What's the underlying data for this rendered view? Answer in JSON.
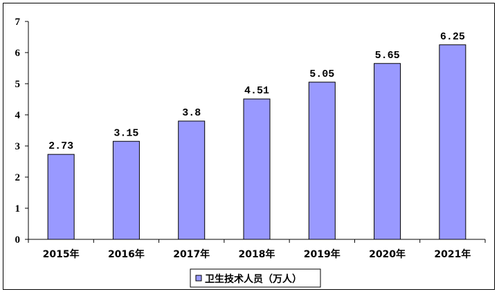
{
  "chart_data": {
    "type": "bar",
    "categories": [
      "2015年",
      "2016年",
      "2017年",
      "2018年",
      "2019年",
      "2020年",
      "2021年"
    ],
    "series": [
      {
        "name": "卫生技术人员（万人）",
        "values": [
          2.73,
          3.15,
          3.8,
          4.51,
          5.05,
          5.65,
          6.25
        ],
        "labels": [
          "2.73",
          "3.15",
          "3.8",
          "4.51",
          "5.05",
          "5.65",
          "6.25"
        ],
        "color": "#9999ff"
      }
    ],
    "ylim": [
      0,
      7
    ],
    "yticks": [
      "0",
      "1",
      "2",
      "3",
      "4",
      "5",
      "6",
      "7"
    ],
    "grid": false,
    "legend_position": "bottom-center",
    "title": "",
    "xlabel": "",
    "ylabel": ""
  }
}
